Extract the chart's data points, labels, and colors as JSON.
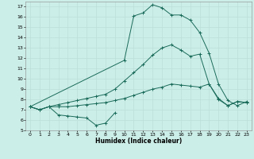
{
  "title": "",
  "xlabel": "Humidex (Indice chaleur)",
  "bg_color": "#cceee8",
  "grid_color": "#b8dcd6",
  "line_color": "#1a6b5a",
  "xlim": [
    -0.5,
    23.5
  ],
  "ylim": [
    5,
    17.5
  ],
  "xticks": [
    0,
    1,
    2,
    3,
    4,
    5,
    6,
    7,
    8,
    9,
    10,
    11,
    12,
    13,
    14,
    15,
    16,
    17,
    18,
    19,
    20,
    21,
    22,
    23
  ],
  "yticks": [
    5,
    6,
    7,
    8,
    9,
    10,
    11,
    12,
    13,
    14,
    15,
    16,
    17
  ],
  "line1_x": [
    0,
    1,
    2,
    3,
    4,
    5,
    6,
    7,
    8,
    9
  ],
  "line1_y": [
    7.3,
    7.0,
    7.3,
    6.5,
    6.4,
    6.3,
    6.2,
    5.5,
    5.7,
    6.7
  ],
  "line2_x": [
    0,
    1,
    2,
    3,
    4,
    5,
    6,
    7,
    8,
    9,
    10,
    11,
    12,
    13,
    14,
    15,
    16,
    17,
    18,
    19,
    20,
    21,
    22,
    23
  ],
  "line2_y": [
    7.3,
    7.0,
    7.3,
    7.3,
    7.3,
    7.4,
    7.5,
    7.6,
    7.7,
    7.9,
    8.1,
    8.4,
    8.7,
    9.0,
    9.2,
    9.5,
    9.4,
    9.3,
    9.2,
    9.5,
    8.1,
    7.4,
    7.8,
    7.7
  ],
  "line3_x": [
    0,
    1,
    2,
    3,
    4,
    5,
    6,
    7,
    8,
    9,
    10,
    11,
    12,
    13,
    14,
    15,
    16,
    17,
    18,
    19,
    20,
    21,
    22,
    23
  ],
  "line3_y": [
    7.3,
    7.0,
    7.3,
    7.5,
    7.7,
    7.9,
    8.1,
    8.3,
    8.5,
    9.0,
    9.8,
    10.6,
    11.4,
    12.3,
    13.0,
    13.3,
    12.8,
    12.2,
    12.4,
    9.5,
    8.0,
    7.4,
    7.8,
    7.7
  ],
  "line4_x": [
    0,
    10,
    11,
    12,
    13,
    14,
    15,
    16,
    17,
    18,
    19,
    20,
    21,
    22,
    23
  ],
  "line4_y": [
    7.3,
    11.8,
    16.1,
    16.4,
    17.2,
    16.9,
    16.2,
    16.2,
    15.7,
    14.5,
    12.5,
    9.5,
    7.9,
    7.4,
    7.8
  ]
}
